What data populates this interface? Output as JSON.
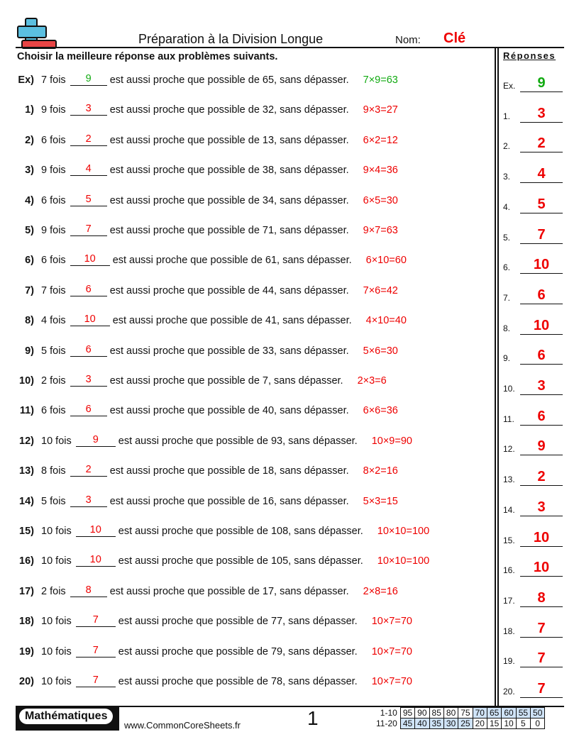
{
  "header": {
    "title": "Préparation à la Division Longue",
    "name_label": "Nom:",
    "name_value": "Clé",
    "logo": "plus-minus-logo"
  },
  "instructions": "Choisir la meilleure réponse aux problèmes suivants.",
  "answers_heading": "Réponses",
  "problems": [
    {
      "num": "Ex)",
      "ans_label": "Ex.",
      "a": "7",
      "answer": "9",
      "rest": "est aussi proche que possible de 65, sans dépasser.",
      "eq": "7×9=63",
      "color": "#22aa22"
    },
    {
      "num": "1)",
      "ans_label": "1.",
      "a": "9",
      "answer": "3",
      "rest": "est aussi proche que possible de 32, sans dépasser.",
      "eq": "9×3=27"
    },
    {
      "num": "2)",
      "ans_label": "2.",
      "a": "6",
      "answer": "2",
      "rest": "est aussi proche que possible de 13, sans dépasser.",
      "eq": "6×2=12"
    },
    {
      "num": "3)",
      "ans_label": "3.",
      "a": "9",
      "answer": "4",
      "rest": "est aussi proche que possible de 38, sans dépasser.",
      "eq": "9×4=36"
    },
    {
      "num": "4)",
      "ans_label": "4.",
      "a": "6",
      "answer": "5",
      "rest": "est aussi proche que possible de 34, sans dépasser.",
      "eq": "6×5=30"
    },
    {
      "num": "5)",
      "ans_label": "5.",
      "a": "9",
      "answer": "7",
      "rest": "est aussi proche que possible de 71, sans dépasser.",
      "eq": "9×7=63"
    },
    {
      "num": "6)",
      "ans_label": "6.",
      "a": "6",
      "answer": "10",
      "rest": "est aussi proche que possible de 61, sans dépasser.",
      "eq": "6×10=60"
    },
    {
      "num": "7)",
      "ans_label": "7.",
      "a": "7",
      "answer": "6",
      "rest": "est aussi proche que possible de 44, sans dépasser.",
      "eq": "7×6=42"
    },
    {
      "num": "8)",
      "ans_label": "8.",
      "a": "4",
      "answer": "10",
      "rest": "est aussi proche que possible de 41, sans dépasser.",
      "eq": "4×10=40"
    },
    {
      "num": "9)",
      "ans_label": "9.",
      "a": "5",
      "answer": "6",
      "rest": "est aussi proche que possible de 33, sans dépasser.",
      "eq": "5×6=30"
    },
    {
      "num": "10)",
      "ans_label": "10.",
      "a": "2",
      "answer": "3",
      "rest": "est aussi proche que possible de 7, sans dépasser.",
      "eq": "2×3=6"
    },
    {
      "num": "11)",
      "ans_label": "11.",
      "a": "6",
      "answer": "6",
      "rest": "est aussi proche que possible de 40, sans dépasser.",
      "eq": "6×6=36"
    },
    {
      "num": "12)",
      "ans_label": "12.",
      "a": "10",
      "answer": "9",
      "rest": "est aussi proche que possible de 93, sans dépasser.",
      "eq": "10×9=90"
    },
    {
      "num": "13)",
      "ans_label": "13.",
      "a": "8",
      "answer": "2",
      "rest": "est aussi proche que possible de 18, sans dépasser.",
      "eq": "8×2=16"
    },
    {
      "num": "14)",
      "ans_label": "14.",
      "a": "5",
      "answer": "3",
      "rest": "est aussi proche que possible de 16, sans dépasser.",
      "eq": "5×3=15"
    },
    {
      "num": "15)",
      "ans_label": "15.",
      "a": "10",
      "answer": "10",
      "rest": "est aussi proche que possible de 108, sans dépasser.",
      "eq": "10×10=100"
    },
    {
      "num": "16)",
      "ans_label": "16.",
      "a": "10",
      "answer": "10",
      "rest": "est aussi proche que possible de 105, sans dépasser.",
      "eq": "10×10=100"
    },
    {
      "num": "17)",
      "ans_label": "17.",
      "a": "2",
      "answer": "8",
      "rest": "est aussi proche que possible de 17, sans dépasser.",
      "eq": "2×8=16"
    },
    {
      "num": "18)",
      "ans_label": "18.",
      "a": "10",
      "answer": "7",
      "rest": "est aussi proche que possible de 77, sans dépasser.",
      "eq": "10×7=70"
    },
    {
      "num": "19)",
      "ans_label": "19.",
      "a": "10",
      "answer": "7",
      "rest": "est aussi proche que possible de 79, sans dépasser.",
      "eq": "10×7=70"
    },
    {
      "num": "20)",
      "ans_label": "20.",
      "a": "10",
      "answer": "7",
      "rest": "est aussi proche que possible de 78, sans dépasser.",
      "eq": "10×7=70"
    }
  ],
  "fois": "fois",
  "footer": {
    "brand": "Mathématiques",
    "url": "www.CommonCoreSheets.fr",
    "page": "1",
    "score_rows": [
      {
        "label": "1-10",
        "values": [
          "95",
          "90",
          "85",
          "80",
          "75",
          "70",
          "65",
          "60",
          "55",
          "50"
        ],
        "shaded": [
          false,
          false,
          false,
          false,
          false,
          true,
          true,
          true,
          true,
          true
        ]
      },
      {
        "label": "11-20",
        "values": [
          "45",
          "40",
          "35",
          "30",
          "25",
          "20",
          "15",
          "10",
          "5",
          "0"
        ],
        "shaded": [
          true,
          true,
          true,
          true,
          true,
          false,
          false,
          false,
          false,
          false
        ]
      }
    ]
  },
  "colors": {
    "answer": "#ee0000",
    "example": "#22aa22",
    "logo_blue": "#5bbfe0",
    "logo_red": "#e84545",
    "score_shade": "#cfe3f7"
  }
}
